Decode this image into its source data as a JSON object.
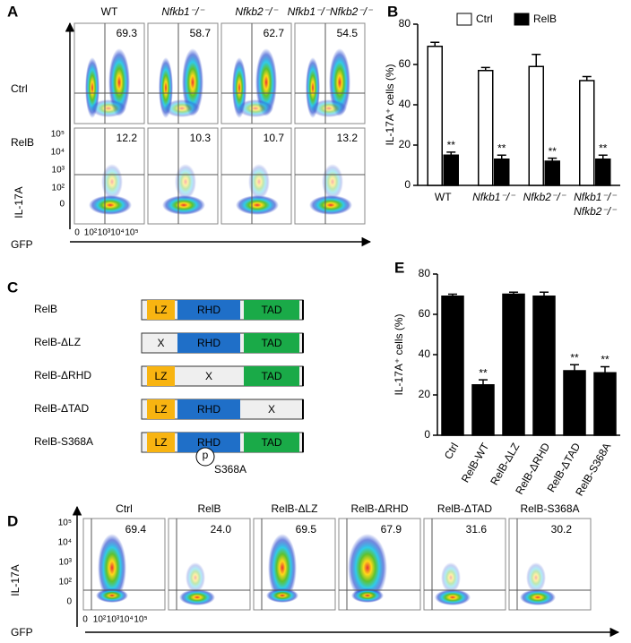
{
  "panels": [
    "A",
    "B",
    "C",
    "D",
    "E"
  ],
  "panel_a": {
    "columns": [
      "WT",
      "Nfkb1⁻/⁻",
      "Nfkb2⁻/⁻",
      "Nfkb1⁻/⁻Nfkb2⁻/⁻"
    ],
    "rows": [
      {
        "label": "Ctrl",
        "percentages": [
          "69.3",
          "58.7",
          "62.7",
          "54.5"
        ]
      },
      {
        "label": "RelB",
        "percentages": [
          "12.2",
          "10.3",
          "10.7",
          "13.2"
        ]
      }
    ],
    "y_axis_label": "IL-17A",
    "x_axis_label": "GFP",
    "y_ticks": [
      "10⁵",
      "10⁴",
      "10³",
      "10²",
      "0"
    ],
    "x_ticks": [
      "0",
      "10²",
      "10³",
      "10⁴",
      "10⁵"
    ]
  },
  "panel_c": {
    "deletion_mark": "X",
    "constructs": [
      {
        "label": "RelB",
        "parts": [
          "LZ",
          "RHD",
          "TAD"
        ]
      },
      {
        "label": "RelB-ΔLZ",
        "parts": [
          null,
          "RHD",
          "TAD"
        ]
      },
      {
        "label": "RelB-ΔRHD",
        "parts": [
          "LZ",
          null,
          "TAD"
        ]
      },
      {
        "label": "RelB-ΔTAD",
        "parts": [
          "LZ",
          "RHD",
          null
        ]
      },
      {
        "label": "RelB-S368A",
        "parts": [
          "LZ",
          "RHD",
          "TAD"
        ],
        "site": {
          "symbol": "p",
          "label": "S368A"
        }
      }
    ]
  },
  "panel_d": {
    "columns": [
      "Ctrl",
      "RelB",
      "RelB-ΔLZ",
      "RelB-ΔRHD",
      "RelB-ΔTAD",
      "RelB-S368A"
    ],
    "percentages": [
      "69.4",
      "24.0",
      "69.5",
      "67.9",
      "31.6",
      "30.2"
    ],
    "y_axis_label": "IL-17A",
    "x_axis_label": "GFP",
    "y_ticks": [
      "10⁵",
      "10⁴",
      "10³",
      "10²",
      "0"
    ],
    "x_ticks": [
      "0",
      "10²",
      "10³",
      "10⁴",
      "10⁵"
    ]
  },
  "chart_data": [
    {
      "type": "bar",
      "y_label": "IL-17A⁺ cells (%)",
      "categories": [
        "WT",
        "Nfkb1⁻/⁻",
        "Nfkb2⁻/⁻",
        [
          "Nfkb1⁻/⁻",
          "Nfkb2⁻/⁻"
        ]
      ],
      "series": [
        {
          "name": "Ctrl",
          "color": "#ffffff",
          "values": [
            69,
            57,
            59,
            52
          ],
          "errors": [
            2,
            1.5,
            6,
            2
          ]
        },
        {
          "name": "RelB",
          "color": "#000000",
          "values": [
            15,
            13,
            12,
            13
          ],
          "errors": [
            1.5,
            2,
            1.5,
            2
          ],
          "annotations": [
            "**",
            "**",
            "**",
            "**"
          ]
        }
      ],
      "ylim": [
        0,
        80
      ],
      "yticks": [
        0,
        20,
        40,
        60,
        80
      ]
    },
    {
      "type": "bar",
      "y_label": "IL-17A⁺ cells (%)",
      "categories": [
        "Ctrl",
        "RelB-WT",
        "RelB-ΔLZ",
        "RelB-ΔRHD",
        "RelB-ΔTAD",
        "RelB-S368A"
      ],
      "series": [
        {
          "color": "#000000",
          "values": [
            69,
            25,
            70,
            69,
            32,
            31
          ],
          "errors": [
            1,
            2.5,
            1,
            2,
            3,
            3
          ],
          "annotations": [
            null,
            "**",
            null,
            null,
            "**",
            "**"
          ]
        }
      ],
      "ylim": [
        0,
        80
      ],
      "yticks": [
        0,
        20,
        40,
        60,
        80
      ]
    }
  ]
}
